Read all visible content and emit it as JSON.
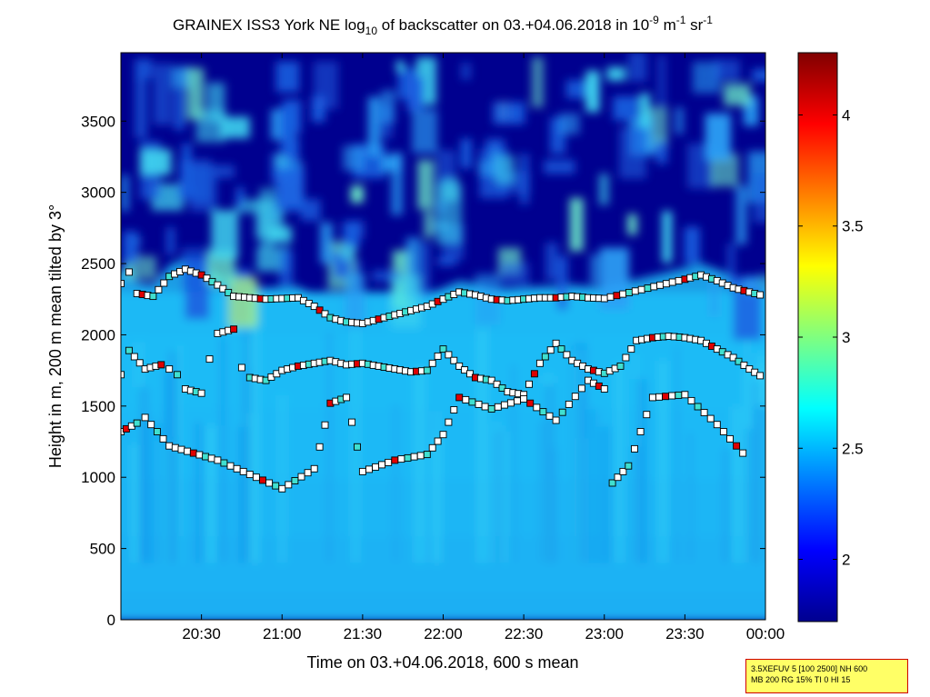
{
  "chart_data": {
    "type": "heatmap",
    "title": {
      "main": "GRAINEX ISS3 York NE log",
      "sub1": "10",
      "mid": " of backscatter on 03.+04.06.2018 in 10",
      "sup1": "-9",
      "mid2": " m",
      "sup2": "-1",
      "mid3": " sr",
      "sup3": "-1"
    },
    "xlabel": "Time on 03.+04.06.2018, 600 s mean",
    "ylabel": "Height in m, 200 m mean tilted by 3°",
    "x_ticks": [
      "20:30",
      "21:00",
      "21:30",
      "22:00",
      "22:30",
      "23:00",
      "23:30",
      "00:00"
    ],
    "x_tick_hours": [
      20.5,
      21.0,
      21.5,
      22.0,
      22.5,
      23.0,
      23.5,
      24.0
    ],
    "xlim_hours": [
      20.0,
      24.0
    ],
    "y_ticks": [
      0,
      500,
      1000,
      1500,
      2000,
      2500,
      3000,
      3500
    ],
    "ylim": [
      0,
      3980
    ],
    "colorbar": {
      "ticks": [
        2,
        2.5,
        3,
        3.5,
        4
      ],
      "tick_labels": [
        "2",
        "2.5",
        "3",
        "3.5",
        "4"
      ],
      "range": [
        1.72,
        4.28
      ],
      "colormap": "jet"
    },
    "layers": [
      {
        "name": "top-layer",
        "points": [
          [
            20.0,
            2360
          ],
          [
            20.05,
            2440
          ],
          [
            20.1,
            2290
          ],
          [
            20.2,
            2270
          ],
          [
            20.3,
            2410
          ],
          [
            20.4,
            2460
          ],
          [
            20.5,
            2420
          ],
          [
            20.6,
            2350
          ],
          [
            20.7,
            2270
          ],
          [
            20.8,
            2260
          ],
          [
            20.9,
            2250
          ],
          [
            21.0,
            2255
          ],
          [
            21.1,
            2260
          ],
          [
            21.2,
            2200
          ],
          [
            21.3,
            2120
          ],
          [
            21.4,
            2090
          ],
          [
            21.5,
            2080
          ],
          [
            21.6,
            2110
          ],
          [
            21.7,
            2140
          ],
          [
            21.8,
            2170
          ],
          [
            21.9,
            2200
          ],
          [
            22.0,
            2250
          ],
          [
            22.1,
            2300
          ],
          [
            22.2,
            2280
          ],
          [
            22.3,
            2250
          ],
          [
            22.4,
            2240
          ],
          [
            22.5,
            2250
          ],
          [
            22.6,
            2260
          ],
          [
            22.7,
            2260
          ],
          [
            22.8,
            2270
          ],
          [
            22.9,
            2260
          ],
          [
            23.0,
            2255
          ],
          [
            23.5,
            2390
          ],
          [
            23.6,
            2420
          ],
          [
            23.7,
            2380
          ],
          [
            23.8,
            2330
          ],
          [
            23.9,
            2300
          ],
          [
            24.0,
            2270
          ]
        ]
      },
      {
        "name": "middle-layer",
        "points": [
          [
            20.0,
            1720
          ],
          [
            20.05,
            1890
          ],
          [
            20.15,
            1760
          ],
          [
            20.25,
            1790
          ],
          [
            20.3,
            1760
          ],
          [
            20.35,
            1720
          ],
          [
            20.4,
            1620
          ],
          [
            20.5,
            1590
          ],
          [
            20.55,
            1830
          ],
          [
            20.6,
            2010
          ],
          [
            20.7,
            2040
          ],
          [
            20.75,
            1770
          ],
          [
            20.8,
            1700
          ],
          [
            20.9,
            1680
          ],
          [
            21.0,
            1750
          ],
          [
            21.1,
            1780
          ],
          [
            21.2,
            1800
          ],
          [
            21.3,
            1820
          ],
          [
            21.4,
            1790
          ],
          [
            21.5,
            1800
          ],
          [
            21.6,
            1780
          ],
          [
            21.7,
            1760
          ],
          [
            21.8,
            1740
          ],
          [
            21.9,
            1750
          ],
          [
            22.0,
            1900
          ],
          [
            22.1,
            1780
          ],
          [
            22.2,
            1700
          ],
          [
            22.3,
            1680
          ],
          [
            22.4,
            1600
          ],
          [
            22.5,
            1580
          ],
          [
            22.6,
            1800
          ],
          [
            22.7,
            1940
          ],
          [
            22.8,
            1820
          ],
          [
            22.9,
            1760
          ],
          [
            23.0,
            1730
          ],
          [
            23.1,
            1780
          ],
          [
            23.2,
            1960
          ],
          [
            23.3,
            1980
          ],
          [
            23.4,
            1990
          ],
          [
            23.5,
            1980
          ],
          [
            23.6,
            1960
          ],
          [
            23.7,
            1900
          ],
          [
            23.8,
            1840
          ],
          [
            23.9,
            1760
          ],
          [
            24.0,
            1690
          ]
        ]
      },
      {
        "name": "low-layer",
        "points": [
          [
            20.0,
            1320
          ],
          [
            20.1,
            1380
          ],
          [
            20.15,
            1420
          ],
          [
            20.3,
            1220
          ],
          [
            20.6,
            1120
          ],
          [
            21.0,
            920
          ],
          [
            21.2,
            1060
          ],
          [
            21.3,
            1520
          ],
          [
            21.4,
            1560
          ],
          [
            21.5,
            1040
          ],
          [
            21.7,
            1120
          ],
          [
            21.9,
            1160
          ],
          [
            22.0,
            1300
          ],
          [
            22.1,
            1560
          ],
          [
            22.3,
            1480
          ],
          [
            22.5,
            1550
          ],
          [
            22.7,
            1400
          ],
          [
            22.9,
            1680
          ],
          [
            23.0,
            1620
          ],
          [
            23.05,
            960
          ],
          [
            23.15,
            1080
          ],
          [
            23.3,
            1560
          ],
          [
            23.5,
            1580
          ],
          [
            23.7,
            1370
          ],
          [
            23.9,
            1120
          ]
        ]
      }
    ]
  },
  "param_box": {
    "line1": "3.5XEFUV 5 [100 2500] NH 600",
    "line2": "MB 200 RG 15% TI 0 HI 15"
  }
}
